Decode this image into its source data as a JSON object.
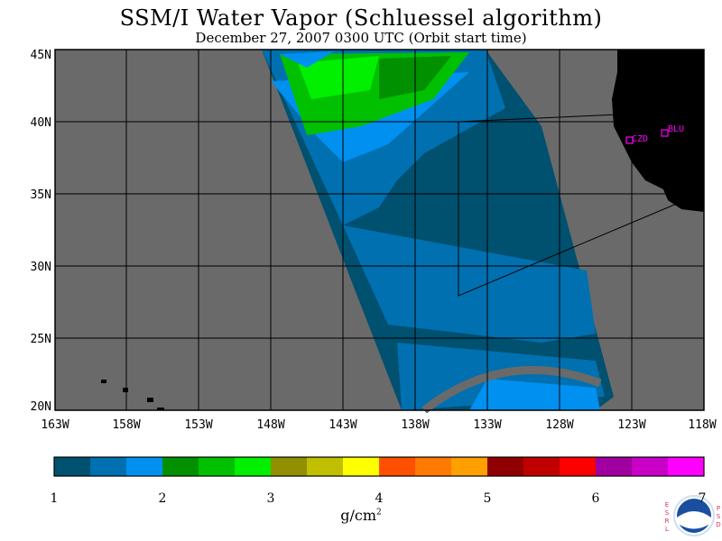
{
  "title": "SSM/I Water Vapor (Schluessel algorithm)",
  "subtitle": "December 27, 2007  0300 UTC  (Orbit start time)",
  "lat_labels": [
    "45N",
    "40N",
    "35N",
    "30N",
    "25N",
    "20N"
  ],
  "lon_labels": [
    "163W",
    "158W",
    "153W",
    "148W",
    "143W",
    "138W",
    "133W",
    "128W",
    "123W",
    "118W"
  ],
  "stations": [
    {
      "label": "CZD"
    },
    {
      "label": "BLU"
    }
  ],
  "colorbar": {
    "ticks": [
      "1",
      "2",
      "3",
      "4",
      "5",
      "6",
      "7"
    ],
    "units_base": "g/cm",
    "units_exp": "2",
    "colors": [
      "#005070",
      "#0070b0",
      "#0090f0",
      "#009000",
      "#00c000",
      "#00f000",
      "#909000",
      "#c0c000",
      "#ffff00",
      "#ff5000",
      "#ff7a00",
      "#ffa000",
      "#900000",
      "#c00000",
      "#ff0000",
      "#a000a0",
      "#c800c8",
      "#ff00ff"
    ]
  },
  "logo": {
    "left_text": "ESRL",
    "right_text": "PSD",
    "center_text": "NOAA"
  },
  "colors": {
    "missing": "#6a6a6a",
    "land": "#000000",
    "station": "#ff00ff"
  }
}
